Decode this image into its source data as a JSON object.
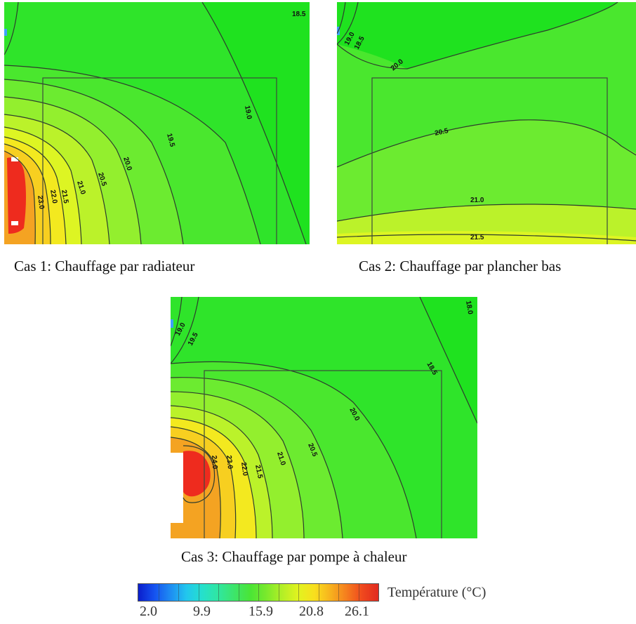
{
  "colors": {
    "field": "#1fe21f",
    "iso_18_5": "#2fe42a",
    "iso_19_0": "#4ae72e",
    "iso_19_5": "#6ceb30",
    "iso_20_0": "#93ef2e",
    "iso_20_5": "#bbf22a",
    "iso_21_0": "#ddf523",
    "iso_21_5": "#f3e91f",
    "iso_22_0": "#f7cf20",
    "iso_23_0": "#f4a322",
    "hot": "#ee2b1e",
    "contour": "#2d3d2d",
    "window": "#3fa0ff"
  },
  "panels": [
    {
      "caption": "Cas 1: Chauffage par radiateur",
      "labels": [
        "18.5",
        "19.0",
        "19.5",
        "20.0",
        "20.5",
        "21.0",
        "21.5",
        "22.0",
        "23.0"
      ]
    },
    {
      "caption": "Cas 2: Chauffage par plancher bas",
      "labels": [
        "19.0",
        "18.5",
        "20.0",
        "20.5",
        "21.0",
        "21.5"
      ]
    },
    {
      "caption": "Cas 3: Chauffage par pompe à chaleur",
      "labels": [
        "18.0",
        "18.5",
        "19.0",
        "19.5",
        "20.0",
        "20.5",
        "21.0",
        "21.5",
        "22.0",
        "23.0",
        "24.0"
      ]
    }
  ],
  "legend": {
    "title": "Température (°C)",
    "ticks": [
      "2.0",
      "9.9",
      "15.9",
      "20.8",
      "26.1"
    ],
    "colors": [
      "#0a1ecc",
      "#1552f0",
      "#1e8cf2",
      "#22c6ee",
      "#25e0cc",
      "#30e6a0",
      "#3de56a",
      "#4ae536",
      "#7ae92c",
      "#b4ef26",
      "#e2f31f",
      "#f8df1e",
      "#f7b21e",
      "#f57e1e",
      "#ef481e",
      "#e12a1f"
    ]
  }
}
